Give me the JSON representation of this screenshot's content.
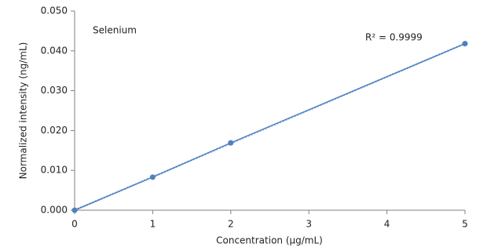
{
  "chart_data": {
    "type": "scatter",
    "x_label": "Concentration (μg/mL)",
    "y_label": "Normalized intensity (ng/mL)",
    "series": [
      {
        "name": "Selenium",
        "color": "#4f7fc0",
        "x": [
          0,
          1,
          2,
          5
        ],
        "values": [
          0,
          0.0083,
          0.0169,
          0.0418
        ]
      }
    ],
    "trendline": {
      "type": "linear",
      "label": "R² = 0.9999",
      "style": "dotted"
    },
    "xlim": [
      0,
      5
    ],
    "xticks": [
      0,
      1,
      2,
      3,
      4,
      5
    ],
    "ylim": [
      0,
      0.05
    ],
    "yticks": [
      {
        "value": 0,
        "label": "0.000"
      },
      {
        "value": 0.01,
        "label": "0.010"
      },
      {
        "value": 0.02,
        "label": "0.020"
      },
      {
        "value": 0.03,
        "label": "0.030"
      },
      {
        "value": 0.04,
        "label": "0.040"
      },
      {
        "value": 0.05,
        "label": "0.050"
      }
    ],
    "grid": false
  }
}
